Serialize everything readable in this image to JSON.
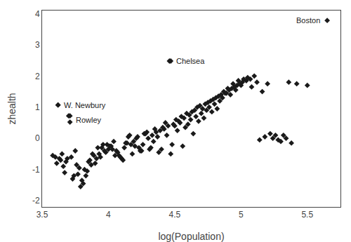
{
  "chart_data": {
    "type": "scatter",
    "xlabel": "log(Population)",
    "ylabel": "zhealth",
    "xlim": [
      3.5,
      5.75
    ],
    "ylim": [
      -2.2,
      4.1
    ],
    "xticks": [
      3.5,
      4,
      4.5,
      5,
      5.5
    ],
    "yticks": [
      -2,
      -1,
      0,
      1,
      2,
      3,
      4
    ],
    "grid": false,
    "color": "#1a1a1a",
    "marker": "diamond",
    "x": [
      3.58,
      3.61,
      3.62,
      3.63,
      3.65,
      3.66,
      3.67,
      3.68,
      3.7,
      3.71,
      3.72,
      3.73,
      3.74,
      3.75,
      3.76,
      3.77,
      3.78,
      3.8,
      3.82,
      3.84,
      3.86,
      3.88,
      3.9,
      3.92,
      3.94,
      3.96,
      3.98,
      4.0,
      4.02,
      4.04,
      4.06,
      4.08,
      4.1,
      4.12,
      4.14,
      4.16,
      4.18,
      4.2,
      4.22,
      4.24,
      4.26,
      4.28,
      4.3,
      4.32,
      4.34,
      4.36,
      4.38,
      4.4,
      4.42,
      4.44,
      4.46,
      4.48,
      4.5,
      4.52,
      4.54,
      4.56,
      4.58,
      4.6,
      4.62,
      4.64,
      4.66,
      4.68,
      4.7,
      4.72,
      4.74,
      4.76,
      4.78,
      4.8,
      4.82,
      4.84,
      4.86,
      4.88,
      4.9,
      4.92,
      4.94,
      4.96,
      4.98,
      5.0,
      5.02,
      5.05,
      5.08,
      5.12,
      5.16,
      5.2,
      5.24,
      5.28,
      5.32,
      5.36,
      5.42,
      5.5,
      3.6,
      3.64,
      3.69,
      3.79,
      3.81,
      3.83,
      3.85,
      3.87,
      3.89,
      3.91,
      3.93,
      3.95,
      3.97,
      3.99,
      4.01,
      4.03,
      4.05,
      4.07,
      4.09,
      4.11,
      4.13,
      4.15,
      4.17,
      4.19,
      4.21,
      4.23,
      4.25,
      4.27,
      4.29,
      4.31,
      4.33,
      4.35,
      4.37,
      4.39,
      4.41,
      4.43,
      4.45,
      4.47,
      4.49,
      4.51,
      4.53,
      4.55,
      4.57,
      4.59,
      4.61,
      4.63,
      4.65,
      4.67,
      4.69,
      4.71,
      4.73,
      4.75,
      4.77,
      4.79,
      4.81,
      4.83,
      4.85,
      4.87,
      4.89,
      4.91,
      4.93,
      4.95,
      4.97,
      4.99,
      5.01,
      5.04,
      5.07,
      5.1,
      5.14,
      5.18,
      5.22,
      5.26,
      5.3,
      5.34,
      5.38
    ],
    "values": [
      -0.55,
      -0.8,
      1.07,
      -0.65,
      -0.5,
      -0.9,
      -1.1,
      -0.75,
      0.72,
      0.52,
      -0.6,
      -1.3,
      -1.2,
      -0.4,
      -0.85,
      -1.15,
      -0.95,
      -1.35,
      -1.0,
      -1.05,
      -0.7,
      -0.5,
      -0.8,
      -0.3,
      -0.6,
      -0.2,
      -0.45,
      -0.35,
      -0.25,
      -0.1,
      -0.4,
      -0.55,
      -0.65,
      -0.3,
      -0.15,
      0.1,
      -0.5,
      -0.25,
      0.05,
      -0.4,
      -0.2,
      0.15,
      0.0,
      -0.3,
      -0.1,
      0.2,
      -0.45,
      -0.35,
      0.3,
      0.1,
      2.48,
      -0.2,
      0.4,
      0.25,
      0.5,
      -0.25,
      0.35,
      0.45,
      0.6,
      0.15,
      0.7,
      0.55,
      0.8,
      0.65,
      0.9,
      1.0,
      0.85,
      1.1,
      0.95,
      1.2,
      1.3,
      1.45,
      1.6,
      1.4,
      1.75,
      1.55,
      1.85,
      1.7,
      1.9,
      1.95,
      1.65,
      1.8,
      1.5,
      1.75,
      0.0,
      -0.05,
      0.1,
      1.8,
      1.75,
      1.7,
      -0.6,
      -0.7,
      -0.65,
      -1.55,
      -1.45,
      -1.2,
      -0.75,
      -0.85,
      -0.55,
      -0.65,
      -0.5,
      -0.3,
      -0.4,
      -0.2,
      -0.25,
      -0.35,
      -0.55,
      -0.45,
      -0.6,
      -0.7,
      -0.15,
      0.05,
      -0.2,
      -0.1,
      0.0,
      -0.3,
      -0.4,
      0.15,
      0.2,
      -0.35,
      0.1,
      0.3,
      0.05,
      0.25,
      0.35,
      0.5,
      0.4,
      -0.5,
      0.45,
      0.6,
      0.55,
      0.7,
      0.65,
      0.8,
      0.75,
      0.85,
      0.9,
      1.0,
      1.05,
      0.95,
      1.1,
      1.15,
      1.2,
      1.25,
      1.3,
      1.35,
      1.4,
      1.5,
      1.45,
      1.55,
      1.6,
      1.65,
      1.7,
      1.75,
      1.8,
      1.85,
      1.9,
      2.0,
      -0.05,
      0.05,
      0.15,
      0.1,
      -0.1,
      0.0,
      -0.15
    ],
    "annotations": [
      {
        "text": "Boston",
        "x": 5.65,
        "y": 3.78
      },
      {
        "text": "Chelsea",
        "x": 4.47,
        "y": 2.48
      },
      {
        "text": "W. Newbury",
        "x": 3.62,
        "y": 1.07
      },
      {
        "text": "Rowley",
        "x": 3.71,
        "y": 0.72
      }
    ]
  }
}
